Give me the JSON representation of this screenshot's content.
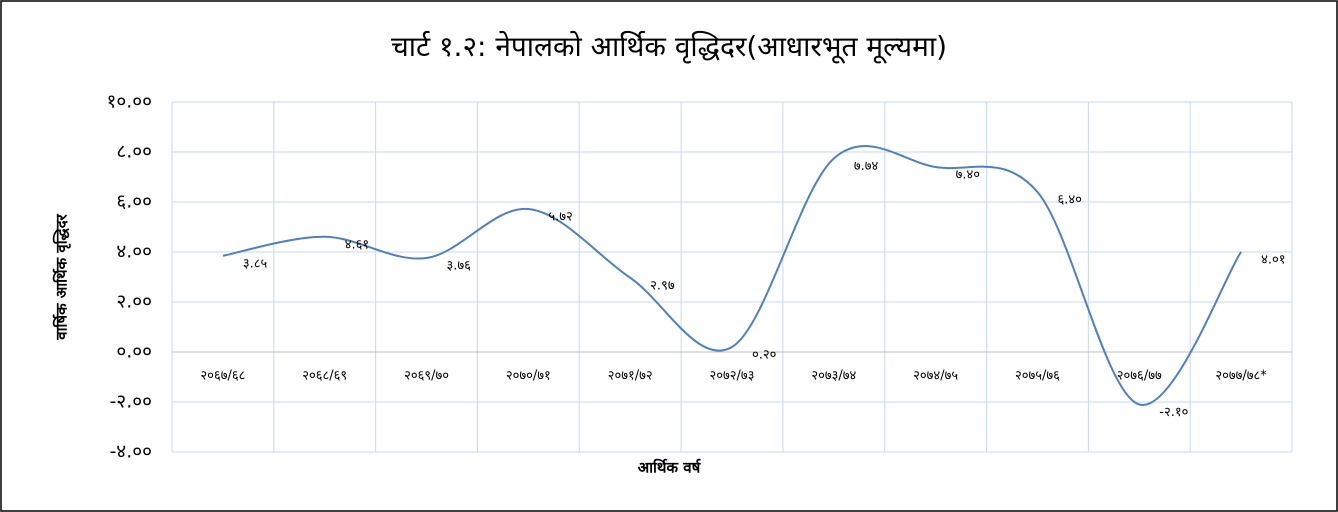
{
  "chart_data": {
    "type": "line",
    "title": "चार्ट १.२: नेपालको आर्थिक वृद्धिदर(आधारभूत मूल्यमा)",
    "x_label": "आर्थिक वर्ष",
    "y_label": "वार्षिक आर्थिक वृद्धिदर",
    "categories": [
      "२०६७/६८",
      "२०६८/६९",
      "२०६९/७०",
      "२०७०/७१",
      "२०७१/७२",
      "२०७२/७३",
      "२०७३/७४",
      "२०७४/७५",
      "२०७५/७६",
      "२०७६/७७",
      "२०७७/७८*"
    ],
    "values": [
      3.85,
      4.61,
      3.76,
      5.72,
      2.97,
      0.2,
      7.74,
      7.4,
      6.4,
      -2.1,
      4.01
    ],
    "value_labels": [
      "३.८५",
      "४.६१",
      "३.७६",
      "५.७२",
      "२.९७",
      "०.२०",
      "७.७४",
      "७.४०",
      "६.४०",
      "-२.१०",
      "४.०१"
    ],
    "color": "#4f81bd",
    "ylim": [
      -4,
      10
    ],
    "yticks": [
      {
        "value": -4,
        "label": "-४.००"
      },
      {
        "value": -2,
        "label": "-२.००"
      },
      {
        "value": 0,
        "label": "०.००"
      },
      {
        "value": 2,
        "label": "२.००"
      },
      {
        "value": 4,
        "label": "४.००"
      },
      {
        "value": 6,
        "label": "६.००"
      },
      {
        "value": 8,
        "label": "८.००"
      },
      {
        "value": 10,
        "label": "१०.००"
      }
    ],
    "grid": true
  }
}
